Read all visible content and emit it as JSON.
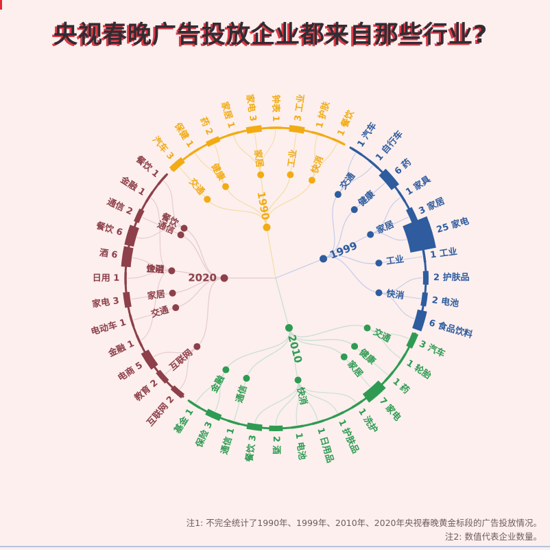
{
  "page": {
    "title": "央视春晚广告投放企业都来自那些行业?",
    "title_color": "#332B33",
    "title_shadow_color": "#DC3A45",
    "corner_tick_color": "#E02A34",
    "bottom_line_color": "#B5C4DE",
    "background_color": "#FCEFEE",
    "notes": {
      "line1": "注1: 不完全统计了1990年、1999年、2010年、2020年央视春晚黄金标段的广告投放情况。",
      "line2": "注2: 数值代表企业数量。"
    }
  },
  "chart_data": {
    "type": "radial-tree",
    "description": "Four year clusters radiating from center; outer ring bar size encodes number of advertiser companies per industry.",
    "groups": [
      {
        "year": "1990",
        "color": "#F2AB13",
        "link_color": "#F6DCA4",
        "categories": [
          {
            "name": "交通",
            "leaves": [
              0
            ]
          },
          {
            "name": "健康",
            "leaves": [
              1,
              2
            ]
          },
          {
            "name": "家居",
            "leaves": [
              3,
              4,
              5
            ]
          },
          {
            "name": "工业",
            "leaves": [
              6
            ]
          },
          {
            "name": "快消",
            "leaves": [
              7,
              8
            ]
          }
        ],
        "leaves": [
          {
            "name": "汽车",
            "value": 3
          },
          {
            "name": "保健",
            "value": 1
          },
          {
            "name": "药",
            "value": 2
          },
          {
            "name": "家居",
            "value": 1
          },
          {
            "name": "家电",
            "value": 3
          },
          {
            "name": "钟表",
            "value": 1
          },
          {
            "name": "工业",
            "value": 3
          },
          {
            "name": "护肤",
            "value": 1
          },
          {
            "name": "餐饮",
            "value": 1
          }
        ]
      },
      {
        "year": "1999",
        "color": "#2E5C9E",
        "link_color": "#C3CCE6",
        "categories": [
          {
            "name": "交通",
            "leaves": [
              0,
              1
            ]
          },
          {
            "name": "健康",
            "leaves": [
              2
            ]
          },
          {
            "name": "家居",
            "leaves": [
              3,
              4,
              5
            ]
          },
          {
            "name": "工业",
            "leaves": [
              6
            ]
          },
          {
            "name": "快消",
            "leaves": [
              7,
              8,
              9
            ]
          }
        ],
        "leaves": [
          {
            "name": "汽车",
            "value": 1
          },
          {
            "name": "自行车",
            "value": 1
          },
          {
            "name": "药",
            "value": 6
          },
          {
            "name": "家具",
            "value": 1
          },
          {
            "name": "家居",
            "value": 3
          },
          {
            "name": "家电",
            "value": 25
          },
          {
            "name": "工业",
            "value": 1
          },
          {
            "name": "护肤品",
            "value": 2
          },
          {
            "name": "电池",
            "value": 2
          },
          {
            "name": "食品饮料",
            "value": 6
          }
        ]
      },
      {
        "year": "2010",
        "color": "#2F9B52",
        "link_color": "#C6DECE",
        "categories": [
          {
            "name": "交通",
            "leaves": [
              0,
              1
            ]
          },
          {
            "name": "健康",
            "leaves": [
              2
            ]
          },
          {
            "name": "家居",
            "leaves": [
              3
            ]
          },
          {
            "name": "快消",
            "leaves": [
              4,
              5,
              6,
              7,
              8,
              9
            ]
          },
          {
            "name": "通信",
            "leaves": [
              10
            ]
          },
          {
            "name": "金融",
            "leaves": [
              11,
              12
            ]
          }
        ],
        "leaves": [
          {
            "name": "汽车",
            "value": 3
          },
          {
            "name": "轮胎",
            "value": 1
          },
          {
            "name": "药",
            "value": 1
          },
          {
            "name": "家电",
            "value": 7
          },
          {
            "name": "洗护",
            "value": 1
          },
          {
            "name": "护肤品",
            "value": 1
          },
          {
            "name": "日用品",
            "value": 1
          },
          {
            "name": "电池",
            "value": 1
          },
          {
            "name": "酒",
            "value": 2
          },
          {
            "name": "餐饮",
            "value": 3
          },
          {
            "name": "通信",
            "value": 1
          },
          {
            "name": "保险",
            "value": 3
          },
          {
            "name": "基金",
            "value": 1
          }
        ]
      },
      {
        "year": "2020",
        "color": "#8D4049",
        "link_color": "#E5C9CE",
        "categories": [
          {
            "name": "互联网",
            "leaves": [
              0,
              1,
              2
            ]
          },
          {
            "name": "金融",
            "leaves": [
              3,
              10
            ]
          },
          {
            "name": "交通",
            "leaves": [
              4
            ]
          },
          {
            "name": "家居",
            "leaves": [
              5
            ]
          },
          {
            "name": "快消",
            "leaves": [
              6,
              7
            ]
          },
          {
            "name": "通信",
            "leaves": [
              9
            ]
          },
          {
            "name": "餐饮",
            "leaves": [
              8,
              11
            ]
          }
        ],
        "leaves": [
          {
            "name": "互联网",
            "value": 2
          },
          {
            "name": "教育",
            "value": 2
          },
          {
            "name": "电商",
            "value": 5
          },
          {
            "name": "金融",
            "value": 1
          },
          {
            "name": "电动车",
            "value": 1
          },
          {
            "name": "家电",
            "value": 3
          },
          {
            "name": "日用",
            "value": 1
          },
          {
            "name": "酒",
            "value": 6
          },
          {
            "name": "餐饮",
            "value": 6
          },
          {
            "name": "通信",
            "value": 2
          },
          {
            "name": "金融",
            "value": 1
          },
          {
            "name": "餐饮",
            "value": 1
          }
        ]
      }
    ]
  }
}
